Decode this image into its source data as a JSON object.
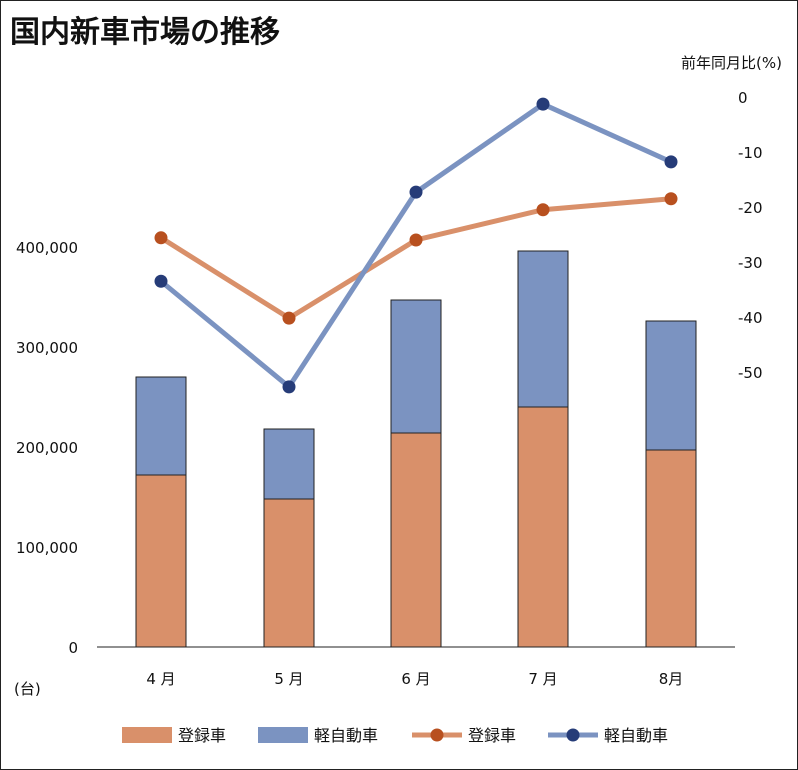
{
  "chart_data": {
    "type": "bar+line",
    "title": "国内新車市場の推移",
    "categories": [
      "4 月",
      "5 月",
      "6 月",
      "7 月",
      "8月"
    ],
    "left_axis": {
      "label": "(台)",
      "range": [
        0,
        550000
      ],
      "ticks": [
        "0",
        "100,000",
        "200,000",
        "300,000",
        "400,000"
      ],
      "tick_values": [
        0,
        100000,
        200000,
        300000,
        400000
      ]
    },
    "right_axis": {
      "label": "前年同月比(%)",
      "range": [
        -100,
        0
      ],
      "ticks": [
        "0",
        "-10",
        "-20",
        "-30",
        "-40",
        "-50"
      ],
      "tick_values": [
        0,
        -10,
        -20,
        -30,
        -40,
        -50
      ]
    },
    "bar_series": [
      {
        "name": "登録車",
        "color": "#D9906A",
        "values": [
          172000,
          148000,
          214000,
          240000,
          197000
        ]
      },
      {
        "name": "軽自動車",
        "color": "#7B93C1",
        "values": [
          98000,
          70000,
          133000,
          156000,
          129000
        ]
      }
    ],
    "line_series": [
      {
        "name": "登録車",
        "color": "#D9906A",
        "marker": "#B8501F",
        "values": [
          -25.6,
          -40.2,
          -26.0,
          -20.5,
          -18.5
        ]
      },
      {
        "name": "軽自動車",
        "color": "#7B93C1",
        "marker": "#263C78",
        "values": [
          -33.5,
          -52.7,
          -17.3,
          -1.3,
          -11.8
        ]
      }
    ],
    "legend_position": "bottom",
    "grid": false
  }
}
